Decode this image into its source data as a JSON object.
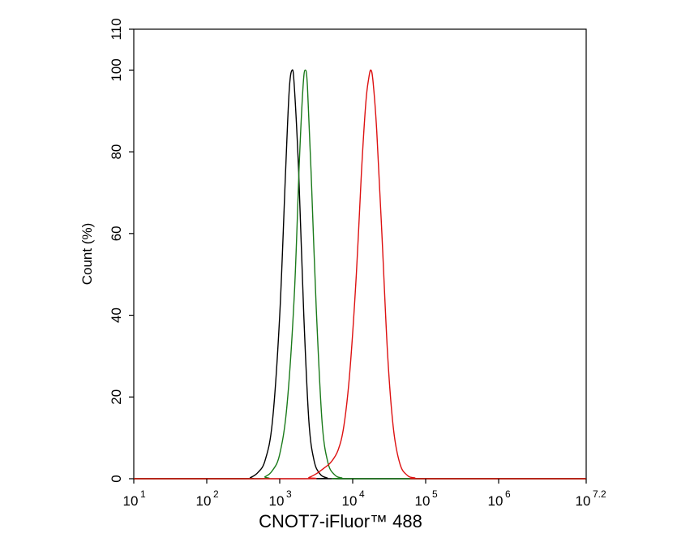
{
  "chart_data": {
    "type": "line",
    "title": "",
    "xlabel": "CNOT7-iFluor™ 488",
    "ylabel": "Count  (%)",
    "x_scale": "log10",
    "xlim": [
      1,
      7.2
    ],
    "ylim": [
      0,
      110
    ],
    "x_ticks": [
      {
        "value": 1,
        "base": "10",
        "exp": "1"
      },
      {
        "value": 2,
        "base": "10",
        "exp": "2"
      },
      {
        "value": 3,
        "base": "10",
        "exp": "3"
      },
      {
        "value": 4,
        "base": "10",
        "exp": "4"
      },
      {
        "value": 5,
        "base": "10",
        "exp": "5"
      },
      {
        "value": 6,
        "base": "10",
        "exp": "6"
      },
      {
        "value": 7.2,
        "base": "10",
        "exp": "7.2"
      }
    ],
    "y_ticks": [
      {
        "value": 0,
        "label": "0"
      },
      {
        "value": 20,
        "label": "20"
      },
      {
        "value": 40,
        "label": "40"
      },
      {
        "value": 60,
        "label": "60"
      },
      {
        "value": 80,
        "label": "80"
      },
      {
        "value": 100,
        "label": "100"
      },
      {
        "value": 110,
        "label": "110"
      }
    ],
    "grid": false,
    "legend": "none",
    "series": [
      {
        "color": "#000000",
        "points": [
          [
            1,
            0
          ],
          [
            2.5,
            0
          ],
          [
            2.6,
            0.3
          ],
          [
            2.7,
            1.5
          ],
          [
            2.8,
            4.5
          ],
          [
            2.9,
            14
          ],
          [
            3.0,
            40
          ],
          [
            3.08,
            75
          ],
          [
            3.13,
            95
          ],
          [
            3.17,
            100
          ],
          [
            3.2,
            96
          ],
          [
            3.26,
            75
          ],
          [
            3.33,
            40
          ],
          [
            3.4,
            14
          ],
          [
            3.47,
            4.5
          ],
          [
            3.55,
            1.2
          ],
          [
            3.65,
            0.2
          ],
          [
            3.8,
            0
          ],
          [
            7.2,
            0
          ]
        ]
      },
      {
        "color": "#1a7a1a",
        "points": [
          [
            1,
            0
          ],
          [
            2.7,
            0
          ],
          [
            2.8,
            0.5
          ],
          [
            2.9,
            2
          ],
          [
            3.0,
            6
          ],
          [
            3.1,
            18
          ],
          [
            3.2,
            45
          ],
          [
            3.27,
            78
          ],
          [
            3.32,
            96
          ],
          [
            3.35,
            100
          ],
          [
            3.38,
            96
          ],
          [
            3.43,
            75
          ],
          [
            3.5,
            42
          ],
          [
            3.58,
            14
          ],
          [
            3.66,
            4
          ],
          [
            3.75,
            1
          ],
          [
            3.85,
            0.2
          ],
          [
            4.0,
            0
          ],
          [
            7.2,
            0
          ]
        ]
      },
      {
        "color": "#dd1111",
        "points": [
          [
            1,
            0
          ],
          [
            3.3,
            0
          ],
          [
            3.4,
            0.3
          ],
          [
            3.5,
            1.2
          ],
          [
            3.6,
            2.5
          ],
          [
            3.7,
            4
          ],
          [
            3.8,
            7
          ],
          [
            3.88,
            13
          ],
          [
            3.96,
            26
          ],
          [
            4.05,
            50
          ],
          [
            4.12,
            75
          ],
          [
            4.18,
            92
          ],
          [
            4.22,
            98
          ],
          [
            4.25,
            100
          ],
          [
            4.28,
            97
          ],
          [
            4.33,
            85
          ],
          [
            4.4,
            60
          ],
          [
            4.48,
            30
          ],
          [
            4.56,
            12
          ],
          [
            4.65,
            3.5
          ],
          [
            4.75,
            0.8
          ],
          [
            4.85,
            0.2
          ],
          [
            5.0,
            0
          ],
          [
            7.2,
            0
          ]
        ]
      }
    ]
  }
}
